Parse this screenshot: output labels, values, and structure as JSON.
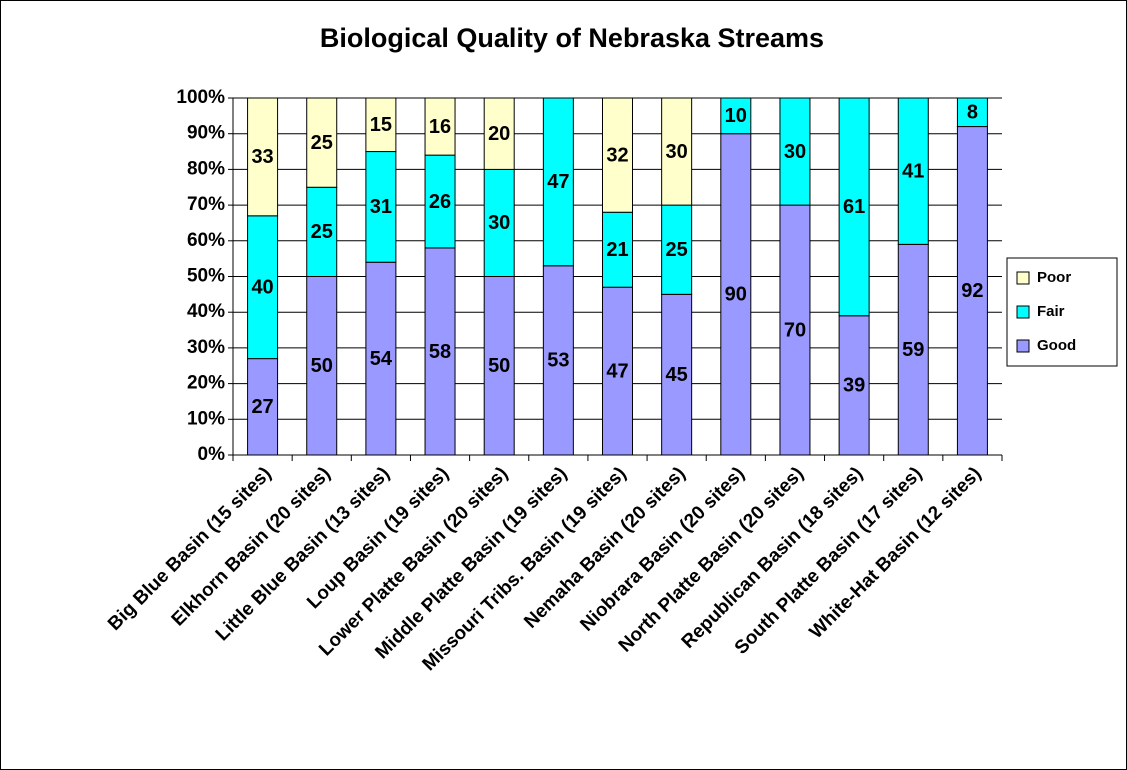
{
  "chart_data": {
    "type": "stacked_bar",
    "title": "Biological Quality of Nebraska Streams",
    "categories": [
      "Big Blue Basin (15 sites)",
      "Elkhorn Basin (20 sites)",
      "Little Blue Basin (13 sites)",
      "Loup Basin (19 sites)",
      "Lower Platte Basin (20 sites)",
      "Middle Platte Basin (19 sites)",
      "Missouri Tribs. Basin (19 sites)",
      "Nemaha Basin (20 sites)",
      "Niobrara Basin (20  sites)",
      "North Platte Basin (20 sites)",
      "Republican Basin (18 sites)",
      "South Platte Basin (17 sites)",
      "White-Hat Basin (12 sites)"
    ],
    "series": [
      {
        "name": "Good",
        "color": "#9999ff",
        "values": [
          27,
          50,
          54,
          58,
          50,
          53,
          47,
          45,
          90,
          70,
          39,
          59,
          92
        ]
      },
      {
        "name": "Fair",
        "color": "#00ffff",
        "values": [
          40,
          25,
          31,
          26,
          30,
          47,
          21,
          25,
          10,
          30,
          61,
          41,
          8
        ]
      },
      {
        "name": "Poor",
        "color": "#ffffcc",
        "values": [
          33,
          25,
          15,
          16,
          20,
          null,
          32,
          30,
          null,
          null,
          null,
          null,
          null
        ]
      }
    ],
    "ylim": [
      0,
      100
    ],
    "yticks": [
      {
        "value": 0,
        "label": "0%"
      },
      {
        "value": 10,
        "label": "10%"
      },
      {
        "value": 20,
        "label": "20%"
      },
      {
        "value": 30,
        "label": "30%"
      },
      {
        "value": 40,
        "label": "40%"
      },
      {
        "value": 50,
        "label": "50%"
      },
      {
        "value": 60,
        "label": "60%"
      },
      {
        "value": 70,
        "label": "70%"
      },
      {
        "value": 80,
        "label": "80%"
      },
      {
        "value": 90,
        "label": "90%"
      },
      {
        "value": 100,
        "label": "100%"
      }
    ],
    "grid": true,
    "legend": "right"
  }
}
